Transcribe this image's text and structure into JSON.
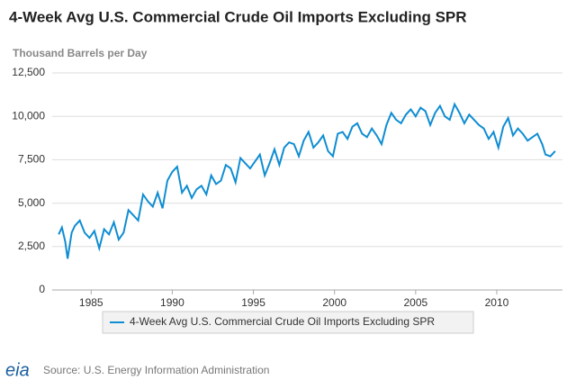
{
  "chart_data": {
    "type": "line",
    "title": "4-Week Avg U.S. Commercial Crude Oil Imports Excluding SPR",
    "y_label": "Thousand Barrels per Day",
    "source": "Source: U.S. Energy Information Administration",
    "logo": "eia",
    "x": [
      1983.0,
      1983.2,
      1983.4,
      1983.55,
      1983.8,
      1984.0,
      1984.3,
      1984.6,
      1984.9,
      1985.2,
      1985.5,
      1985.8,
      1986.1,
      1986.4,
      1986.7,
      1987.0,
      1987.3,
      1987.6,
      1987.9,
      1988.2,
      1988.5,
      1988.8,
      1989.1,
      1989.4,
      1989.7,
      1990.0,
      1990.3,
      1990.6,
      1990.9,
      1991.2,
      1991.5,
      1991.8,
      1992.1,
      1992.4,
      1992.7,
      1993.0,
      1993.3,
      1993.6,
      1993.9,
      1994.2,
      1994.5,
      1994.8,
      1995.1,
      1995.4,
      1995.7,
      1996.0,
      1996.3,
      1996.6,
      1996.9,
      1997.2,
      1997.5,
      1997.8,
      1998.1,
      1998.4,
      1998.7,
      1999.0,
      1999.3,
      1999.6,
      1999.9,
      2000.2,
      2000.5,
      2000.8,
      2001.1,
      2001.4,
      2001.7,
      2002.0,
      2002.3,
      2002.6,
      2002.9,
      2003.2,
      2003.5,
      2003.8,
      2004.1,
      2004.4,
      2004.7,
      2005.0,
      2005.3,
      2005.6,
      2005.9,
      2006.2,
      2006.5,
      2006.8,
      2007.1,
      2007.4,
      2007.7,
      2008.0,
      2008.3,
      2008.6,
      2008.9,
      2009.2,
      2009.5,
      2009.8,
      2010.1,
      2010.4,
      2010.7,
      2011.0,
      2011.3,
      2011.6,
      2011.9,
      2012.2,
      2012.5,
      2012.8,
      2013.0,
      2013.3,
      2013.6
    ],
    "series": [
      {
        "name": "4-Week Avg U.S. Commercial Crude Oil Imports Excluding SPR",
        "color": "#0f8dd2",
        "values": [
          3200,
          3600,
          2800,
          1800,
          3300,
          3700,
          4000,
          3300,
          3000,
          3400,
          2400,
          3500,
          3200,
          3900,
          2900,
          3300,
          4600,
          4300,
          4000,
          5500,
          5100,
          4800,
          5600,
          4700,
          6300,
          6800,
          7100,
          5600,
          6000,
          5300,
          5800,
          6000,
          5500,
          6600,
          6100,
          6300,
          7200,
          7000,
          6200,
          7600,
          7300,
          7000,
          7400,
          7800,
          6600,
          7300,
          8100,
          7200,
          8200,
          8500,
          8400,
          7700,
          8600,
          9100,
          8200,
          8500,
          8900,
          8000,
          7700,
          9000,
          9100,
          8700,
          9400,
          9600,
          9000,
          8800,
          9300,
          8900,
          8400,
          9500,
          10200,
          9800,
          9600,
          10100,
          10400,
          10000,
          10500,
          10300,
          9500,
          10200,
          10600,
          10000,
          9800,
          10700,
          10200,
          9600,
          10100,
          9800,
          9500,
          9300,
          8700,
          9100,
          8200,
          9400,
          9900,
          8900,
          9300,
          9000,
          8600,
          8800,
          9000,
          8400,
          7800,
          7700,
          8000
        ]
      }
    ],
    "xlim": [
      1982.6,
      2014.05
    ],
    "xticks": [
      1985,
      1990,
      1995,
      2000,
      2005,
      2010
    ],
    "ylim": [
      0,
      12500
    ],
    "yticks": [
      0,
      {
        "value": 2500,
        "label": "2,500"
      },
      {
        "value": 5000,
        "label": "5,000"
      },
      {
        "value": 7500,
        "label": "7,500"
      },
      {
        "value": 10000,
        "label": "10,000"
      },
      {
        "value": 12500,
        "label": "12,500"
      }
    ],
    "grid": true
  }
}
